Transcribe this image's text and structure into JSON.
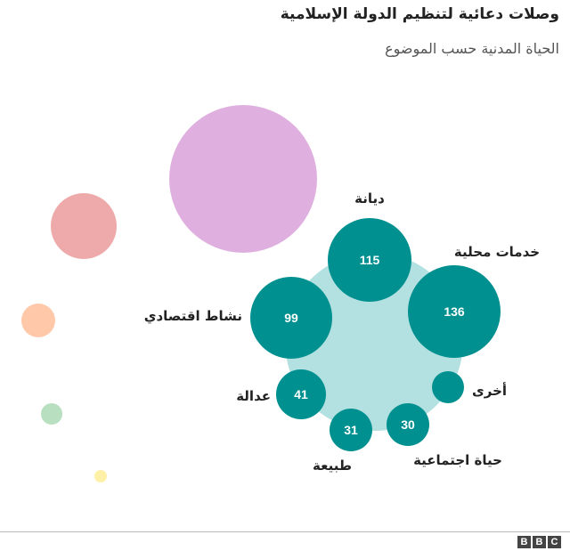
{
  "chart_data": {
    "type": "bubble",
    "title": "وصلات دعائية لتنظيم الدولة الإسلامية",
    "subtitle": "الحياة المدنية حسب الموضوع",
    "colors": {
      "group": "#b3e0e0",
      "highlight": "#009090",
      "pink": "#dfb0df",
      "red": "#eeaaaa",
      "orange": "#ffc8a8",
      "green": "#b8e0c0",
      "yellow": "#fff0a8"
    },
    "highlight_items": [
      {
        "label": "ديانة",
        "value": 115
      },
      {
        "label": "خدمات محلية",
        "value": 136
      },
      {
        "label": "نشاط اقتصادي",
        "value": 99
      },
      {
        "label": "عدالة",
        "value": 41
      },
      {
        "label": "طبيعة",
        "value": 31
      },
      {
        "label": "حياة اجتماعية",
        "value": 30
      },
      {
        "label": "أخرى",
        "value": null
      }
    ],
    "other_groups": [
      "pink",
      "red",
      "orange",
      "green",
      "yellow"
    ]
  },
  "footer": {
    "logo": [
      "B",
      "B",
      "C"
    ]
  }
}
